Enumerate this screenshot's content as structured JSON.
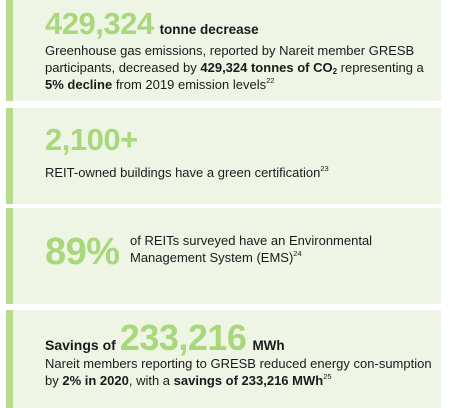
{
  "stat1": {
    "figure": "429,324",
    "unit": "tonne decrease",
    "text_a": "Greenhouse gas emissions, reported by Nareit member GRESB participants, decreased by ",
    "bold_a": "429,324 tonnes of CO",
    "bold_sub": "2",
    "text_b": " representing a ",
    "bold_b": "5% decline",
    "text_c": " from 2019 emission levels",
    "ref": "22"
  },
  "stat2": {
    "figure": "2,100+",
    "text": "REIT-owned buildings have a green certification",
    "ref": "23"
  },
  "stat3": {
    "figure": "89%",
    "text": "of REITs surveyed have an Environmental Management System (EMS)",
    "ref": "24"
  },
  "stat4": {
    "lead": "Savings of",
    "figure": "233,216",
    "unit": "MWh",
    "text_a": "Nareit members reporting to GRESB reduced energy con-sumption by ",
    "bold_a": "2% in 2020",
    "text_b": ", with a ",
    "bold_b": "savings of 233,216 MWh",
    "ref": "25"
  },
  "colors": {
    "card_bg": "#eef5e4",
    "accent_bar": "#b7dc8f",
    "figure_green": "#a9d77c",
    "text": "#1b1b1b"
  }
}
